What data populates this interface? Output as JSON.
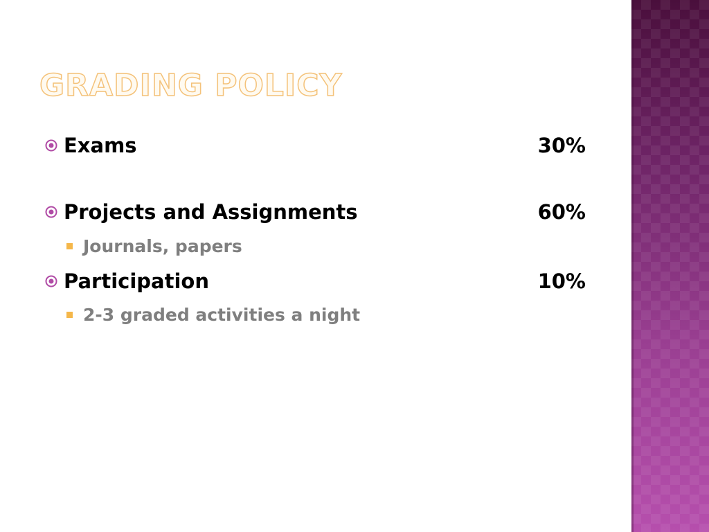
{
  "slide": {
    "title": "GRADING POLICY",
    "items": [
      {
        "label": "Exams",
        "value": "30%",
        "subitems": []
      },
      {
        "label": "Projects and Assignments",
        "value": "60%",
        "subitems": [
          "Journals, papers"
        ]
      },
      {
        "label": "Participation",
        "value": "10%",
        "subitems": [
          "2-3 graded activities a night"
        ]
      }
    ]
  },
  "colors": {
    "title": "#f4c27a",
    "bullet_icon": "#b04aa5",
    "sub_bullet": "#f5b74a",
    "body_text": "#000000",
    "sub_text": "#7f7f7f",
    "side_band": "#7a2a70"
  },
  "icons": {
    "bullet": "circled-dot-icon",
    "sub_bullet": "square-bullet-icon"
  }
}
